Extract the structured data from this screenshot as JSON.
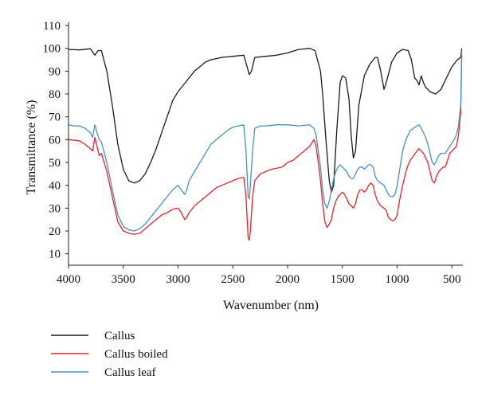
{
  "chart_data": {
    "type": "line",
    "title": "",
    "xlabel": "Wavenumber (nm)",
    "ylabel": "Transmittance (%)",
    "xlim": [
      4000,
      400
    ],
    "ylim": [
      5,
      110
    ],
    "x_reversed": true,
    "grid": false,
    "legend_position": "below-left",
    "x_ticks": [
      4000,
      3500,
      3000,
      2500,
      2000,
      1500,
      1000,
      500
    ],
    "y_ticks": [
      10,
      20,
      30,
      40,
      50,
      60,
      70,
      80,
      90,
      100,
      110
    ],
    "series": [
      {
        "name": "Callus",
        "color": "#1a1a1a",
        "points": [
          [
            4000,
            99.5
          ],
          [
            3900,
            99.3
          ],
          [
            3800,
            99.8
          ],
          [
            3760,
            97
          ],
          [
            3730,
            99
          ],
          [
            3700,
            99
          ],
          [
            3650,
            90
          ],
          [
            3600,
            75
          ],
          [
            3550,
            58
          ],
          [
            3500,
            47
          ],
          [
            3450,
            42
          ],
          [
            3400,
            41
          ],
          [
            3350,
            42
          ],
          [
            3300,
            45
          ],
          [
            3250,
            50
          ],
          [
            3200,
            56
          ],
          [
            3150,
            63
          ],
          [
            3100,
            70
          ],
          [
            3050,
            77
          ],
          [
            3000,
            81
          ],
          [
            2950,
            84
          ],
          [
            2900,
            87
          ],
          [
            2850,
            90
          ],
          [
            2800,
            92
          ],
          [
            2750,
            94
          ],
          [
            2700,
            95
          ],
          [
            2600,
            96
          ],
          [
            2500,
            96.5
          ],
          [
            2400,
            97
          ],
          [
            2370,
            92
          ],
          [
            2350,
            88.5
          ],
          [
            2330,
            90
          ],
          [
            2300,
            96
          ],
          [
            2200,
            96.5
          ],
          [
            2100,
            97
          ],
          [
            2000,
            98
          ],
          [
            1900,
            99.5
          ],
          [
            1800,
            100
          ],
          [
            1750,
            99
          ],
          [
            1700,
            90
          ],
          [
            1680,
            80
          ],
          [
            1650,
            60
          ],
          [
            1620,
            42
          ],
          [
            1600,
            37
          ],
          [
            1580,
            40
          ],
          [
            1550,
            65
          ],
          [
            1520,
            85
          ],
          [
            1500,
            88
          ],
          [
            1470,
            87
          ],
          [
            1440,
            78
          ],
          [
            1420,
            62
          ],
          [
            1400,
            52
          ],
          [
            1380,
            55
          ],
          [
            1350,
            75
          ],
          [
            1300,
            88
          ],
          [
            1250,
            93
          ],
          [
            1200,
            96
          ],
          [
            1180,
            96
          ],
          [
            1150,
            90
          ],
          [
            1120,
            82
          ],
          [
            1100,
            85
          ],
          [
            1050,
            94
          ],
          [
            1000,
            98
          ],
          [
            950,
            99.5
          ],
          [
            900,
            99
          ],
          [
            870,
            95
          ],
          [
            840,
            87
          ],
          [
            820,
            86
          ],
          [
            800,
            84
          ],
          [
            780,
            88
          ],
          [
            760,
            85
          ],
          [
            740,
            83
          ],
          [
            700,
            81
          ],
          [
            650,
            80
          ],
          [
            600,
            82
          ],
          [
            550,
            87
          ],
          [
            500,
            92
          ],
          [
            450,
            95
          ],
          [
            420,
            96
          ],
          [
            410,
            100
          ]
        ]
      },
      {
        "name": "Callus boiled",
        "color": "#e8232b",
        "points": [
          [
            4000,
            60
          ],
          [
            3900,
            59.5
          ],
          [
            3850,
            58
          ],
          [
            3800,
            56
          ],
          [
            3780,
            55
          ],
          [
            3760,
            61
          ],
          [
            3740,
            57
          ],
          [
            3720,
            53
          ],
          [
            3700,
            54
          ],
          [
            3650,
            46
          ],
          [
            3600,
            35
          ],
          [
            3550,
            24
          ],
          [
            3500,
            20
          ],
          [
            3450,
            19
          ],
          [
            3400,
            18.5
          ],
          [
            3350,
            19
          ],
          [
            3300,
            21
          ],
          [
            3250,
            23
          ],
          [
            3200,
            25
          ],
          [
            3150,
            27
          ],
          [
            3100,
            28
          ],
          [
            3050,
            29.5
          ],
          [
            3000,
            30
          ],
          [
            2970,
            28
          ],
          [
            2940,
            25
          ],
          [
            2920,
            26
          ],
          [
            2900,
            28
          ],
          [
            2850,
            31
          ],
          [
            2800,
            33
          ],
          [
            2750,
            35
          ],
          [
            2700,
            37
          ],
          [
            2650,
            39
          ],
          [
            2600,
            40
          ],
          [
            2550,
            41
          ],
          [
            2500,
            42
          ],
          [
            2450,
            43
          ],
          [
            2400,
            43.5
          ],
          [
            2380,
            35
          ],
          [
            2360,
            17
          ],
          [
            2350,
            16
          ],
          [
            2340,
            20
          ],
          [
            2320,
            35
          ],
          [
            2300,
            42
          ],
          [
            2250,
            45
          ],
          [
            2200,
            46
          ],
          [
            2150,
            47
          ],
          [
            2100,
            47.5
          ],
          [
            2050,
            48
          ],
          [
            2000,
            50
          ],
          [
            1950,
            51
          ],
          [
            1900,
            53
          ],
          [
            1850,
            55
          ],
          [
            1800,
            57
          ],
          [
            1760,
            60
          ],
          [
            1740,
            57
          ],
          [
            1720,
            50
          ],
          [
            1700,
            42
          ],
          [
            1680,
            32
          ],
          [
            1660,
            24
          ],
          [
            1640,
            21.5
          ],
          [
            1620,
            23
          ],
          [
            1600,
            25
          ],
          [
            1580,
            30
          ],
          [
            1560,
            33
          ],
          [
            1540,
            35
          ],
          [
            1520,
            36
          ],
          [
            1500,
            37
          ],
          [
            1480,
            36
          ],
          [
            1460,
            34
          ],
          [
            1440,
            32
          ],
          [
            1420,
            31
          ],
          [
            1400,
            30
          ],
          [
            1380,
            32
          ],
          [
            1360,
            36
          ],
          [
            1340,
            38
          ],
          [
            1320,
            38
          ],
          [
            1300,
            37
          ],
          [
            1280,
            38
          ],
          [
            1260,
            40
          ],
          [
            1240,
            41
          ],
          [
            1220,
            40
          ],
          [
            1200,
            36
          ],
          [
            1180,
            33
          ],
          [
            1150,
            31
          ],
          [
            1120,
            30
          ],
          [
            1100,
            29
          ],
          [
            1080,
            26
          ],
          [
            1060,
            25
          ],
          [
            1040,
            24.5
          ],
          [
            1020,
            25
          ],
          [
            1000,
            27
          ],
          [
            980,
            33
          ],
          [
            950,
            40
          ],
          [
            920,
            46
          ],
          [
            900,
            49
          ],
          [
            880,
            51
          ],
          [
            850,
            53
          ],
          [
            820,
            55
          ],
          [
            800,
            56
          ],
          [
            780,
            55
          ],
          [
            760,
            54
          ],
          [
            740,
            52
          ],
          [
            720,
            50
          ],
          [
            700,
            46
          ],
          [
            680,
            42
          ],
          [
            660,
            41
          ],
          [
            640,
            44
          ],
          [
            620,
            46
          ],
          [
            600,
            47
          ],
          [
            580,
            48
          ],
          [
            560,
            48
          ],
          [
            540,
            51
          ],
          [
            520,
            54
          ],
          [
            500,
            55
          ],
          [
            480,
            56
          ],
          [
            460,
            57
          ],
          [
            440,
            62
          ],
          [
            420,
            72
          ],
          [
            410,
            97
          ]
        ]
      },
      {
        "name": "Callus leaf",
        "color": "#4a90c8",
        "points": [
          [
            4000,
            66.5
          ],
          [
            3950,
            66
          ],
          [
            3900,
            66
          ],
          [
            3850,
            65
          ],
          [
            3800,
            63
          ],
          [
            3780,
            61
          ],
          [
            3760,
            66.5
          ],
          [
            3740,
            63
          ],
          [
            3720,
            60
          ],
          [
            3700,
            59
          ],
          [
            3650,
            50
          ],
          [
            3600,
            38
          ],
          [
            3550,
            27
          ],
          [
            3500,
            22
          ],
          [
            3450,
            20.5
          ],
          [
            3400,
            20
          ],
          [
            3350,
            21
          ],
          [
            3300,
            23
          ],
          [
            3250,
            26
          ],
          [
            3200,
            29
          ],
          [
            3150,
            32
          ],
          [
            3100,
            35
          ],
          [
            3050,
            38
          ],
          [
            3000,
            40
          ],
          [
            2970,
            38
          ],
          [
            2940,
            36
          ],
          [
            2920,
            38
          ],
          [
            2900,
            42
          ],
          [
            2850,
            46
          ],
          [
            2800,
            50
          ],
          [
            2750,
            54
          ],
          [
            2700,
            58
          ],
          [
            2650,
            60
          ],
          [
            2600,
            62
          ],
          [
            2550,
            64
          ],
          [
            2500,
            65.5
          ],
          [
            2450,
            66
          ],
          [
            2400,
            66.5
          ],
          [
            2380,
            55
          ],
          [
            2360,
            35
          ],
          [
            2350,
            34
          ],
          [
            2340,
            40
          ],
          [
            2320,
            55
          ],
          [
            2300,
            65
          ],
          [
            2250,
            66
          ],
          [
            2200,
            66
          ],
          [
            2100,
            66.5
          ],
          [
            2000,
            66.5
          ],
          [
            1900,
            66
          ],
          [
            1800,
            66.5
          ],
          [
            1760,
            65
          ],
          [
            1740,
            62
          ],
          [
            1720,
            55
          ],
          [
            1700,
            48
          ],
          [
            1680,
            38
          ],
          [
            1660,
            32
          ],
          [
            1640,
            30
          ],
          [
            1620,
            33
          ],
          [
            1600,
            38
          ],
          [
            1580,
            43
          ],
          [
            1560,
            46
          ],
          [
            1540,
            48
          ],
          [
            1520,
            49
          ],
          [
            1500,
            48
          ],
          [
            1480,
            47
          ],
          [
            1460,
            46
          ],
          [
            1440,
            44
          ],
          [
            1420,
            43
          ],
          [
            1400,
            43
          ],
          [
            1380,
            45
          ],
          [
            1360,
            47
          ],
          [
            1340,
            48
          ],
          [
            1320,
            48
          ],
          [
            1300,
            47
          ],
          [
            1280,
            48
          ],
          [
            1260,
            49
          ],
          [
            1240,
            49
          ],
          [
            1220,
            48
          ],
          [
            1200,
            44
          ],
          [
            1180,
            42
          ],
          [
            1150,
            41
          ],
          [
            1120,
            40
          ],
          [
            1100,
            38
          ],
          [
            1080,
            36
          ],
          [
            1060,
            35
          ],
          [
            1040,
            35
          ],
          [
            1020,
            36
          ],
          [
            1000,
            40
          ],
          [
            980,
            46
          ],
          [
            950,
            55
          ],
          [
            920,
            60
          ],
          [
            900,
            62
          ],
          [
            880,
            64
          ],
          [
            850,
            65
          ],
          [
            820,
            66
          ],
          [
            800,
            66.5
          ],
          [
            780,
            65
          ],
          [
            760,
            63
          ],
          [
            740,
            61
          ],
          [
            720,
            58
          ],
          [
            700,
            54
          ],
          [
            680,
            50
          ],
          [
            660,
            49
          ],
          [
            640,
            51
          ],
          [
            620,
            53
          ],
          [
            600,
            54
          ],
          [
            560,
            54
          ],
          [
            520,
            57
          ],
          [
            480,
            60
          ],
          [
            460,
            62
          ],
          [
            440,
            66
          ],
          [
            420,
            75
          ],
          [
            410,
            99
          ]
        ]
      }
    ]
  }
}
